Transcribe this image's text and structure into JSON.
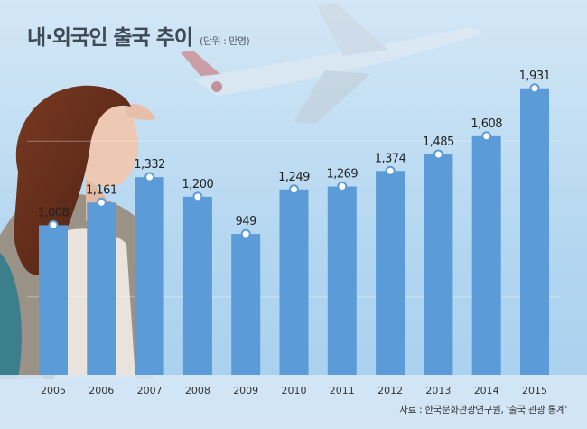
{
  "title": "내·외국인 출국 추이",
  "unit_label": "(단위 : 만명)",
  "source": "자료 : 한국문화관광연구원, '출국 관광 통계'",
  "colors": {
    "bar": "#5b9bd8",
    "sky_top": "#cfe4f5",
    "sky_bottom": "#9fcaec",
    "axis_band": "#d5e7f5",
    "text": "#333333"
  },
  "chart_data": {
    "type": "bar",
    "categories": [
      "2005",
      "2006",
      "2007",
      "2008",
      "2009",
      "2010",
      "2011",
      "2012",
      "2013",
      "2014",
      "2015"
    ],
    "values": [
      1008,
      1161,
      1332,
      1200,
      949,
      1249,
      1269,
      1374,
      1485,
      1608,
      1931
    ],
    "value_labels": [
      "1,008",
      "1,161",
      "1,332",
      "1,200",
      "949",
      "1,249",
      "1,269",
      "1,374",
      "1,485",
      "1,608",
      "1,931"
    ],
    "ylim": [
      0,
      2100
    ],
    "grid": true,
    "legend": "none",
    "data_label_markers": true
  }
}
